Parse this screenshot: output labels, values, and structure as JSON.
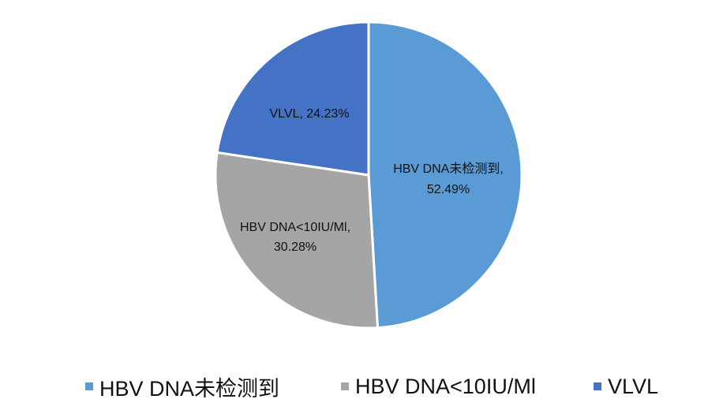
{
  "chart_data": {
    "type": "pie",
    "title": "",
    "slices": [
      {
        "name": "HBV DNA未检测到",
        "value": 52.49,
        "label_line1": "HBV DNA未检测到,",
        "label_line2": "52.49%",
        "color": "#5B9BD5"
      },
      {
        "name": "HBV DNA<10IU/Ml",
        "value": 30.28,
        "label_line1": "HBV DNA<10IU/Ml,",
        "label_line2": "30.28%",
        "color": "#A5A5A5"
      },
      {
        "name": "VLVL",
        "value": 24.23,
        "label_line1": "VLVL, 24.23%",
        "label_line2": "",
        "color": "#4472C4"
      }
    ],
    "legend_position": "bottom",
    "legend": [
      {
        "label": "HBV DNA未检测到",
        "color": "#5B9BD5"
      },
      {
        "label": "HBV DNA<10IU/Ml",
        "color": "#A5A5A5"
      },
      {
        "label": "VLVL",
        "color": "#4472C4"
      }
    ]
  }
}
